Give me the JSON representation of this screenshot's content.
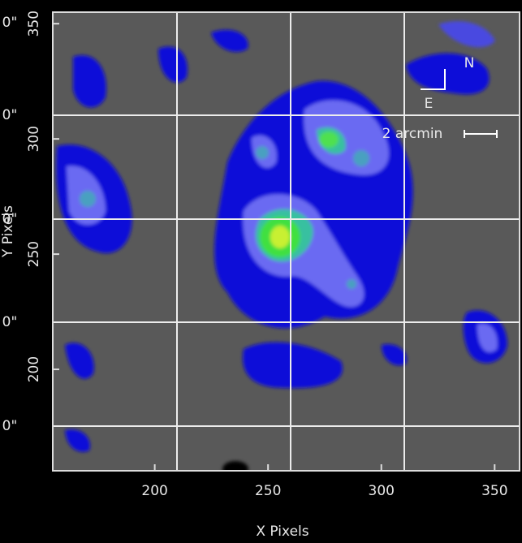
{
  "chart_data": {
    "type": "image",
    "xlabel": "X Pixels",
    "ylabel": "Y Pixels",
    "xlim": [
      155,
      361
    ],
    "ylim": [
      156,
      355
    ],
    "xticks": [
      200,
      250,
      300,
      350
    ],
    "yticks": [
      200,
      250,
      300,
      350
    ],
    "sky_labels": [
      "0\"",
      "0\"",
      "0\"",
      "0\"",
      "0\""
    ],
    "annotations": {
      "north": "N",
      "east": "E",
      "scale": "2 arcmin"
    }
  }
}
